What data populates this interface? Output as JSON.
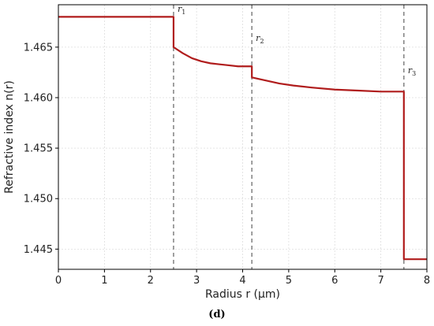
{
  "caption": "(d)",
  "chart_data": {
    "type": "line",
    "xlabel": "Radius r (µm)",
    "ylabel": "Refractive index n(r)",
    "xlim": [
      0,
      8
    ],
    "ylim": [
      1.443,
      1.4692
    ],
    "xticks": [
      0,
      1,
      2,
      3,
      4,
      5,
      6,
      7,
      8
    ],
    "yticks": [
      1.445,
      1.45,
      1.455,
      1.46,
      1.465
    ],
    "ytick_labels": [
      "1.445",
      "1.450",
      "1.455",
      "1.460",
      "1.465"
    ],
    "grid": true,
    "line_color": "#b01c1c",
    "boundary_color": "#808080",
    "boundaries": [
      {
        "symbol": "r",
        "sub": "1",
        "x": 2.5
      },
      {
        "symbol": "r",
        "sub": "2",
        "x": 4.2
      },
      {
        "symbol": "r",
        "sub": "3",
        "x": 7.5
      }
    ],
    "series": [
      {
        "x": [
          0,
          2.5,
          2.5,
          2.7,
          2.9,
          3.1,
          3.3,
          3.5,
          3.7,
          3.9,
          4.2,
          4.2,
          4.5,
          4.8,
          5.1,
          5.5,
          6.0,
          6.5,
          7.0,
          7.5,
          7.5,
          8.0
        ],
        "y": [
          1.468,
          1.468,
          1.465,
          1.4644,
          1.4639,
          1.4636,
          1.4634,
          1.4633,
          1.4632,
          1.4631,
          1.4631,
          1.462,
          1.4617,
          1.4614,
          1.4612,
          1.461,
          1.4608,
          1.4607,
          1.4606,
          1.4606,
          1.444,
          1.444
        ]
      }
    ]
  }
}
